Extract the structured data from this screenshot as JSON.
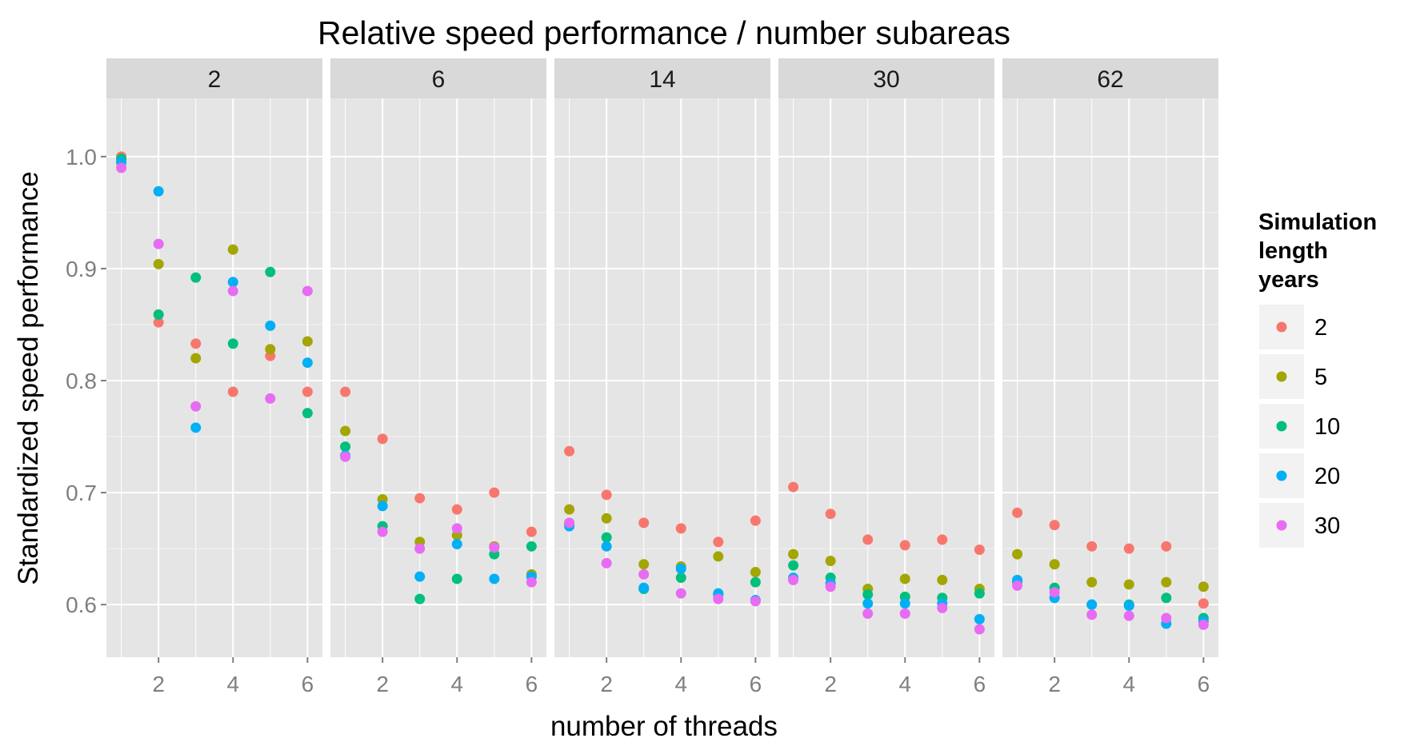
{
  "chart_data": {
    "type": "scatter",
    "title": "Relative speed performance / number subareas",
    "xlabel": "number of threads",
    "ylabel": "Standardized speed performance",
    "facet_labels": [
      "2",
      "6",
      "14",
      "30",
      "62"
    ],
    "xlim": [
      0.6,
      6.4
    ],
    "ylim": [
      0.553,
      1.052
    ],
    "x_ticks": [
      2,
      4,
      6
    ],
    "y_ticks": [
      0.6,
      0.7,
      0.8,
      0.9,
      1.0
    ],
    "y_tick_labels": [
      "0.6",
      "0.7",
      "0.8",
      "0.9",
      "1.0"
    ],
    "x_values": [
      1,
      2,
      3,
      4,
      5,
      6
    ],
    "grid": true,
    "legend": {
      "title_lines": [
        "Simulation",
        "length",
        "years"
      ],
      "position": "right"
    },
    "series": [
      {
        "name": "2",
        "color": "#F8766D",
        "values": [
          [
            1.0,
            0.852,
            0.833,
            0.79,
            0.822,
            0.79
          ],
          [
            0.79,
            0.748,
            0.695,
            0.685,
            0.7,
            0.665
          ],
          [
            0.737,
            0.698,
            0.673,
            0.668,
            0.656,
            0.675
          ],
          [
            0.705,
            0.681,
            0.658,
            0.653,
            0.658,
            0.649
          ],
          [
            0.682,
            0.671,
            0.652,
            0.65,
            0.652,
            0.601
          ]
        ]
      },
      {
        "name": "5",
        "color": "#A3A500",
        "values": [
          [
            0.995,
            0.904,
            0.82,
            0.917,
            0.828,
            0.835
          ],
          [
            0.755,
            0.694,
            0.656,
            0.662,
            0.652,
            0.627
          ],
          [
            0.685,
            0.677,
            0.636,
            0.634,
            0.643,
            0.629
          ],
          [
            0.645,
            0.639,
            0.614,
            0.623,
            0.622,
            0.614
          ],
          [
            0.645,
            0.636,
            0.62,
            0.618,
            0.62,
            0.616
          ]
        ]
      },
      {
        "name": "10",
        "color": "#00BF7D",
        "values": [
          [
            0.998,
            0.859,
            0.892,
            0.833,
            0.897,
            0.771
          ],
          [
            0.741,
            0.67,
            0.605,
            0.623,
            0.645,
            0.652
          ],
          [
            0.672,
            0.66,
            0.614,
            0.624,
            0.609,
            0.62
          ],
          [
            0.635,
            0.624,
            0.609,
            0.607,
            0.606,
            0.61
          ],
          [
            0.62,
            0.615,
            0.6,
            0.6,
            0.606,
            0.588
          ]
        ]
      },
      {
        "name": "20",
        "color": "#00B0F6",
        "values": [
          [
            0.995,
            0.969,
            0.758,
            0.888,
            0.849,
            0.816
          ],
          [
            0.733,
            0.688,
            0.625,
            0.654,
            0.623,
            0.625
          ],
          [
            0.67,
            0.652,
            0.615,
            0.632,
            0.61,
            0.604
          ],
          [
            0.624,
            0.619,
            0.601,
            0.601,
            0.601,
            0.587
          ],
          [
            0.622,
            0.606,
            0.6,
            0.599,
            0.583,
            0.585
          ]
        ]
      },
      {
        "name": "30",
        "color": "#E76BF3",
        "values": [
          [
            0.99,
            0.922,
            0.777,
            0.88,
            0.784,
            0.88
          ],
          [
            0.732,
            0.665,
            0.65,
            0.668,
            0.651,
            0.62
          ],
          [
            0.673,
            0.637,
            0.627,
            0.61,
            0.605,
            0.603
          ],
          [
            0.622,
            0.616,
            0.592,
            0.592,
            0.597,
            0.578
          ],
          [
            0.617,
            0.611,
            0.591,
            0.59,
            0.588,
            0.582
          ]
        ]
      }
    ]
  }
}
